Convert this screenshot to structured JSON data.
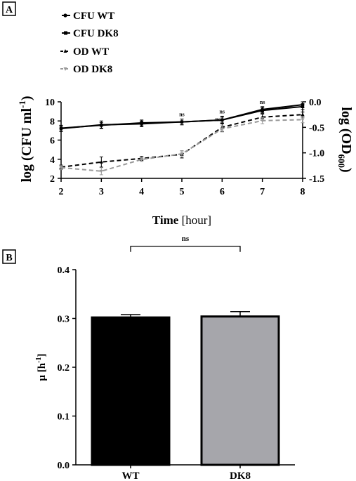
{
  "chart_data": [
    {
      "panel_label": "A",
      "type": "line",
      "x": [
        2,
        3,
        4,
        5,
        6,
        7,
        8
      ],
      "xlim": [
        2,
        8
      ],
      "xticks": [
        2,
        3,
        4,
        5,
        6,
        7,
        8
      ],
      "xlabel_bold": "Time",
      "xlabel_rest": " [hour]",
      "ylabel_left": "log (CFU ml",
      "ylabel_left_sup": "-1",
      "ylabel_left_close": ")",
      "ylim_left": [
        2,
        10
      ],
      "yticks_left": [
        2,
        4,
        6,
        8,
        10
      ],
      "ylabel_right": "log (OD",
      "ylabel_right_sub": "600",
      "ylabel_right_close": ")",
      "ylim_right": [
        -1.5,
        0.0
      ],
      "yticks_right": [
        -1.5,
        -1.0,
        -0.5,
        0.0
      ],
      "yticks_right_labels": [
        "-1.5",
        "-1.0",
        "-0.5",
        "0.0"
      ],
      "series": [
        {
          "name": "CFU WT",
          "axis": "left",
          "color": "#000000",
          "dash": "solid",
          "values": [
            7.2,
            7.6,
            7.7,
            7.9,
            8.1,
            9.2,
            9.7
          ],
          "errors": [
            0.3,
            0.4,
            0.3,
            0.3,
            0.4,
            0.3,
            0.3
          ]
        },
        {
          "name": "CFU DK8",
          "axis": "left",
          "color": "#000000",
          "dash": "solid",
          "values": [
            7.25,
            7.55,
            7.8,
            7.9,
            8.1,
            9.1,
            9.5
          ],
          "errors": [
            0.3,
            0.3,
            0.3,
            0.3,
            0.3,
            0.3,
            0.3
          ]
        },
        {
          "name": "OD WT",
          "axis": "right",
          "color": "#000000",
          "dash": "dashed",
          "values": [
            -1.28,
            -1.18,
            -1.11,
            -1.03,
            -0.5,
            -0.3,
            -0.25
          ],
          "errors": [
            0.04,
            0.1,
            0.04,
            0.07,
            0.08,
            0.06,
            0.05
          ]
        },
        {
          "name": "OD DK8",
          "axis": "right",
          "color": "#999999",
          "dash": "dashed",
          "values": [
            -1.29,
            -1.36,
            -1.13,
            -1.02,
            -0.53,
            -0.37,
            -0.35
          ],
          "errors": [
            0.04,
            0.07,
            0.04,
            0.06,
            0.06,
            0.06,
            0.06
          ]
        }
      ],
      "annotations": [
        {
          "x": 5,
          "text": "ns"
        },
        {
          "x": 6,
          "text": "ns"
        },
        {
          "x": 7,
          "text": "ns"
        }
      ],
      "grid": false,
      "legend_position": "top-left"
    },
    {
      "panel_label": "B",
      "type": "bar",
      "categories": [
        "WT",
        "DK8"
      ],
      "values": [
        0.302,
        0.304
      ],
      "errors": [
        0.006,
        0.01
      ],
      "colors": [
        "#000000",
        "#a6a6ab"
      ],
      "ylabel": "μ [h",
      "ylabel_sup": "-1",
      "ylabel_close": "]",
      "ylim": [
        0.0,
        0.4
      ],
      "yticks": [
        0.0,
        0.1,
        0.2,
        0.3,
        0.4
      ],
      "yticks_labels": [
        "0.0",
        "0.1",
        "0.2",
        "0.3",
        "0.4"
      ],
      "significance": {
        "between": [
          "WT",
          "DK8"
        ],
        "text": "ns"
      },
      "grid": false
    }
  ]
}
